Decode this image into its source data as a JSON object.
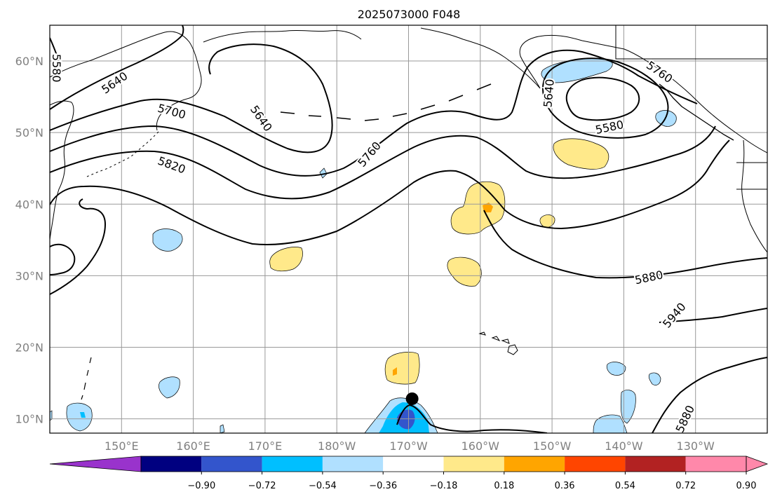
{
  "title": "2025073000 F048",
  "map": {
    "projection": "equirectangular",
    "lon_range": [
      140,
      240
    ],
    "lat_range": [
      8,
      65
    ],
    "lat_ticks": [
      {
        "lat": 10,
        "label": "10°N"
      },
      {
        "lat": 20,
        "label": "20°N"
      },
      {
        "lat": 30,
        "label": "30°N"
      },
      {
        "lat": 40,
        "label": "40°N"
      },
      {
        "lat": 50,
        "label": "50°N"
      },
      {
        "lat": 60,
        "label": "60°N"
      }
    ],
    "lon_ticks": [
      {
        "lon": 150,
        "label": "150°E"
      },
      {
        "lon": 160,
        "label": "160°E"
      },
      {
        "lon": 170,
        "label": "170°E"
      },
      {
        "lon": 180,
        "label": "180°W"
      },
      {
        "lon": 190,
        "label": "170°W"
      },
      {
        "lon": 200,
        "label": "160°W"
      },
      {
        "lon": 210,
        "label": "150°W"
      },
      {
        "lon": 220,
        "label": "140°W"
      },
      {
        "lon": 230,
        "label": "130°W"
      }
    ],
    "grid": true,
    "gridline_color": "#999999"
  },
  "colorbar": {
    "bounds": [
      "−0.90",
      "−0.72",
      "−0.54",
      "−0.36",
      "−0.18",
      "0.18",
      "0.36",
      "0.54",
      "0.72",
      "0.90"
    ],
    "colors": [
      "#9933cc",
      "#000080",
      "#3355cc",
      "#00bfff",
      "#b0e0ff",
      "#ffffff",
      "#ffe98a",
      "#ffa500",
      "#ff4500",
      "#b22222",
      "#ff88aa"
    ]
  },
  "contour_labels": [
    {
      "text": "5580",
      "lon": 141.0,
      "lat": 59.0,
      "rot": 90
    },
    {
      "text": "5640",
      "lon": 149.0,
      "lat": 57.0,
      "rot": -35
    },
    {
      "text": "5700",
      "lon": 157.0,
      "lat": 53.0,
      "rot": 15
    },
    {
      "text": "5640",
      "lon": 169.5,
      "lat": 52.0,
      "rot": 55
    },
    {
      "text": "5820",
      "lon": 157.0,
      "lat": 45.5,
      "rot": 20
    },
    {
      "text": "5760",
      "lon": 184.5,
      "lat": 47.0,
      "rot": -50
    },
    {
      "text": "5640",
      "lon": 209.5,
      "lat": 55.5,
      "rot": -85
    },
    {
      "text": "5760",
      "lon": 225.0,
      "lat": 58.5,
      "rot": 35
    },
    {
      "text": "5580",
      "lon": 218.0,
      "lat": 50.8,
      "rot": -12
    },
    {
      "text": "5880",
      "lon": 223.5,
      "lat": 29.8,
      "rot": -12
    },
    {
      "text": "5940",
      "lon": 227.0,
      "lat": 24.5,
      "rot": -50
    },
    {
      "text": "5880",
      "lon": 228.5,
      "lat": 10.0,
      "rot": -65
    }
  ],
  "cyclone_marker": {
    "lon": 190.5,
    "lat": 12.8
  }
}
